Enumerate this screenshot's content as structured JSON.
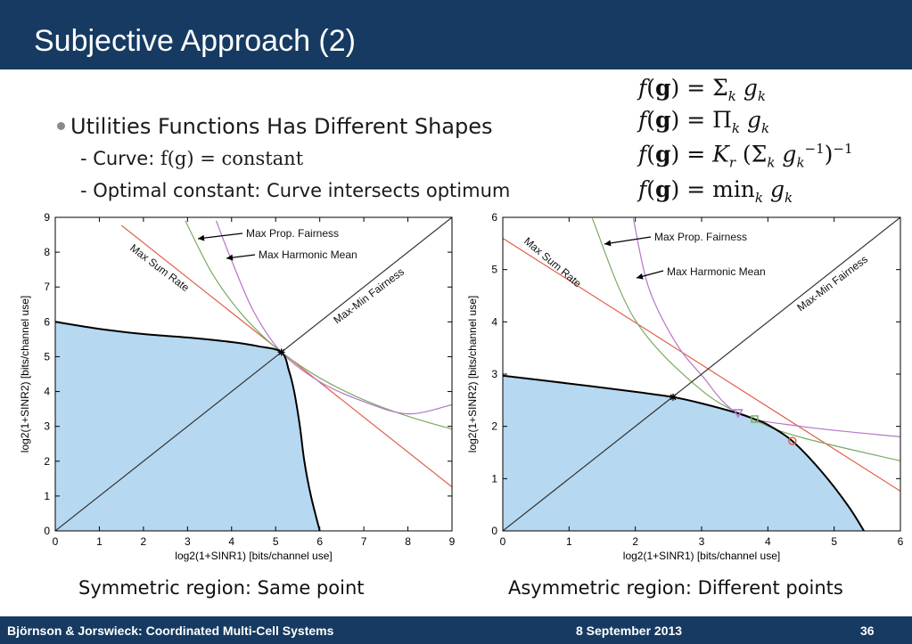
{
  "slide": {
    "title": "Subjective Approach (2)",
    "bullet": "Utilities Functions Has Different Shapes",
    "sub1_prefix": "- Curve: ",
    "sub1_math": "f(g) = constant",
    "sub2": "- Optimal constant: Curve intersects optimum",
    "formulas": [
      "f(g) = Σ_k g_k",
      "f(g) = Π_k g_k",
      "f(g) = K_r (Σ_k g_k^-1)^-1",
      "f(g) = min_k g_k"
    ],
    "caption_left": "Symmetric region: Same point",
    "caption_right": "Asymmetric region: Different points"
  },
  "footer": {
    "left": "Björnson & Jorswieck: Coordinated Multi-Cell Systems",
    "center": "8 September 2013",
    "right": "36"
  },
  "colors": {
    "header_bg": "#163a61",
    "region_fill": "#b6d8f0",
    "max_sum_rate": "#e0604a",
    "prop_fairness": "#7aaa62",
    "harmonic_mean": "#b774c9",
    "max_min": "#333333",
    "boundary": "#000000"
  },
  "chart_data": [
    {
      "type": "area",
      "xlabel": "log2(1+SINR1) [bits/channel use]",
      "ylabel": "log2(1+SINR2) [bits/channel use]",
      "xlim": [
        0,
        9
      ],
      "ylim": [
        0,
        9
      ],
      "xticks": [
        "0",
        "1",
        "2",
        "3",
        "4",
        "5",
        "6",
        "7",
        "8",
        "9"
      ],
      "yticks": [
        "0",
        "1",
        "2",
        "3",
        "4",
        "5",
        "6",
        "7",
        "8",
        "9"
      ],
      "region_boundary": [
        [
          0,
          6.0
        ],
        [
          1,
          5.8
        ],
        [
          2,
          5.65
        ],
        [
          3,
          5.55
        ],
        [
          4,
          5.42
        ],
        [
          4.6,
          5.3
        ],
        [
          5.13,
          5.13
        ],
        [
          5.3,
          4.6
        ],
        [
          5.42,
          4.0
        ],
        [
          5.55,
          3.0
        ],
        [
          5.65,
          2.0
        ],
        [
          5.8,
          1.0
        ],
        [
          6.0,
          0
        ]
      ],
      "series": [
        {
          "name": "Max Sum Rate",
          "points": [
            [
              1.5,
              8.77
            ],
            [
              9,
              1.26
            ]
          ]
        },
        {
          "name": "Max Prop. Fairness",
          "points": [
            [
              2.95,
              8.9
            ],
            [
              3.5,
              7.52
            ],
            [
              4.0,
              6.58
            ],
            [
              4.5,
              5.85
            ],
            [
              5.13,
              5.13
            ],
            [
              6.0,
              4.39
            ],
            [
              7.0,
              3.76
            ],
            [
              8.0,
              3.29
            ],
            [
              9.0,
              2.92
            ]
          ]
        },
        {
          "name": "Max Harmonic Mean",
          "points": [
            [
              3.65,
              8.9
            ],
            [
              4.0,
              7.76
            ],
            [
              4.5,
              6.3
            ],
            [
              5.13,
              5.13
            ],
            [
              6.0,
              4.28
            ],
            [
              7.0,
              3.71
            ],
            [
              8.0,
              3.36
            ],
            [
              9.0,
              3.62
            ]
          ]
        },
        {
          "name": "Max-Min Fairness",
          "points": [
            [
              0,
              0
            ],
            [
              9,
              9
            ]
          ]
        }
      ],
      "optimum": [
        [
          5.13,
          5.13
        ]
      ],
      "annotations": [
        "Max Prop. Fairness",
        "Max Harmonic Mean",
        "Max Sum Rate",
        "Max-Min Fairness"
      ]
    },
    {
      "type": "area",
      "xlabel": "log2(1+SINR1) [bits/channel use]",
      "ylabel": "log2(1+SINR2) [bits/channel use]",
      "xlim": [
        0,
        6
      ],
      "ylim": [
        0,
        6
      ],
      "xticks": [
        "0",
        "1",
        "2",
        "3",
        "4",
        "5",
        "6"
      ],
      "yticks": [
        "0",
        "1",
        "2",
        "3",
        "4",
        "5",
        "6"
      ],
      "region_boundary": [
        [
          0,
          2.97
        ],
        [
          1,
          2.82
        ],
        [
          2,
          2.66
        ],
        [
          2.57,
          2.56
        ],
        [
          3,
          2.44
        ],
        [
          3.55,
          2.25
        ],
        [
          3.8,
          2.14
        ],
        [
          4.0,
          2.03
        ],
        [
          4.37,
          1.72
        ],
        [
          4.8,
          1.15
        ],
        [
          5.2,
          0.5
        ],
        [
          5.45,
          0
        ]
      ],
      "series": [
        {
          "name": "Max Sum Rate",
          "points": [
            [
              0,
              5.6
            ],
            [
              6,
              0.76
            ]
          ]
        },
        {
          "name": "Max Prop. Fairness",
          "points": [
            [
              1.35,
              5.98
            ],
            [
              2.0,
              4.03
            ],
            [
              3.0,
              2.69
            ],
            [
              3.8,
              2.12
            ],
            [
              4.5,
              1.79
            ],
            [
              6.0,
              1.34
            ]
          ]
        },
        {
          "name": "Max Harmonic Mean",
          "points": [
            [
              1.97,
              5.98
            ],
            [
              2.2,
              4.66
            ],
            [
              2.6,
              3.62
            ],
            [
              3.0,
              2.98
            ],
            [
              3.55,
              2.25
            ],
            [
              4.5,
              2.0
            ],
            [
              6.0,
              1.8
            ]
          ]
        },
        {
          "name": "Max-Min Fairness",
          "points": [
            [
              0,
              0
            ],
            [
              6,
              6
            ]
          ]
        }
      ],
      "optimum": [
        [
          2.57,
          2.56
        ],
        [
          3.55,
          2.25
        ],
        [
          3.8,
          2.14
        ],
        [
          4.37,
          1.72
        ]
      ],
      "annotations": [
        "Max Prop. Fairness",
        "Max Harmonic Mean",
        "Max Sum Rate",
        "Max-Min Fairness"
      ]
    }
  ]
}
